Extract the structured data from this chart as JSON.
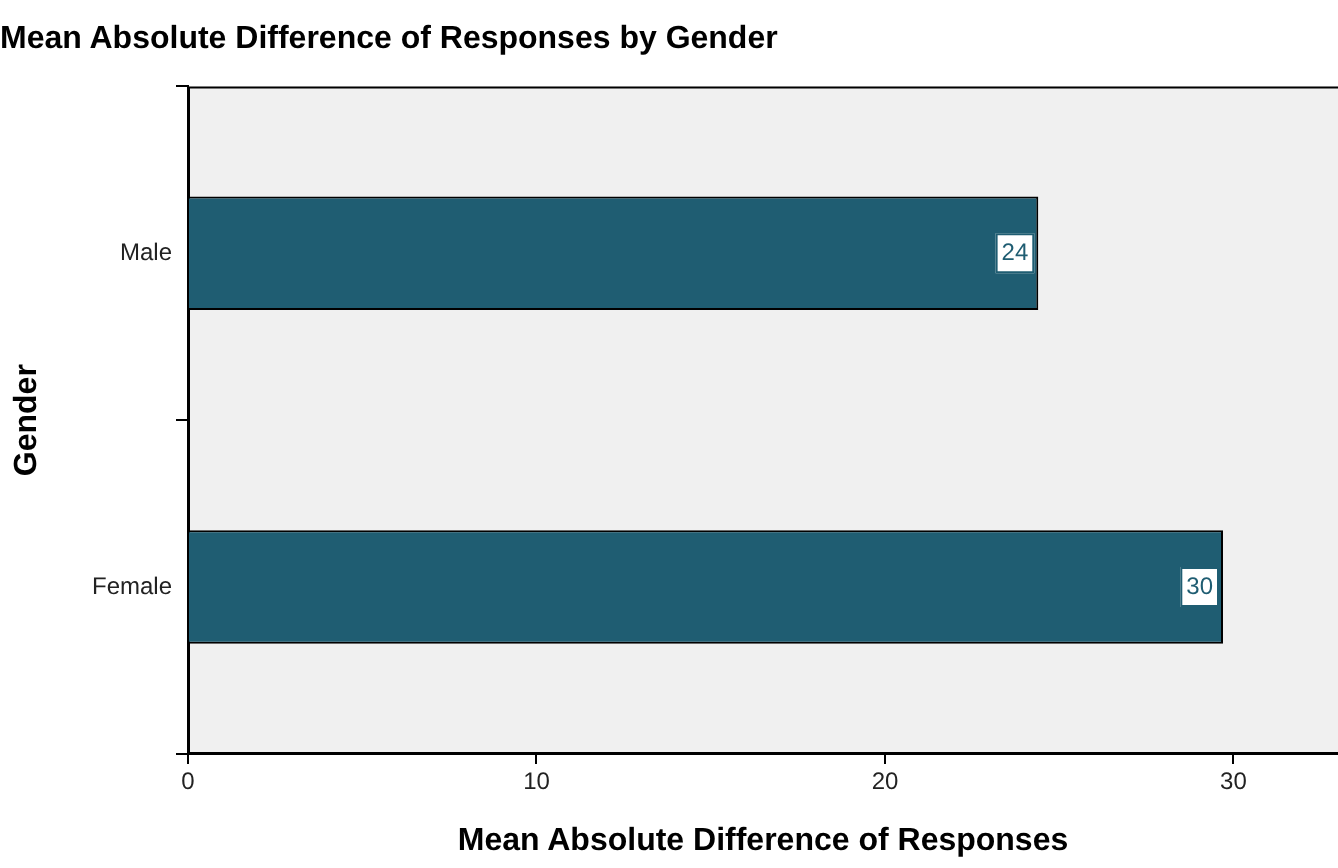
{
  "chart_data": {
    "type": "bar",
    "orientation": "horizontal",
    "title": "Mean Absolute Difference of Responses by Gender",
    "xlabel": "Mean Absolute Difference of Responses",
    "ylabel": "Gender",
    "categories": [
      "Male",
      "Female"
    ],
    "values": [
      24.4,
      29.7
    ],
    "value_labels": [
      "24",
      "30"
    ],
    "color": "#1f5d72",
    "xlim": [
      0,
      33
    ],
    "xticks": [
      0,
      10,
      20,
      30
    ],
    "grid": false,
    "legend": false
  }
}
